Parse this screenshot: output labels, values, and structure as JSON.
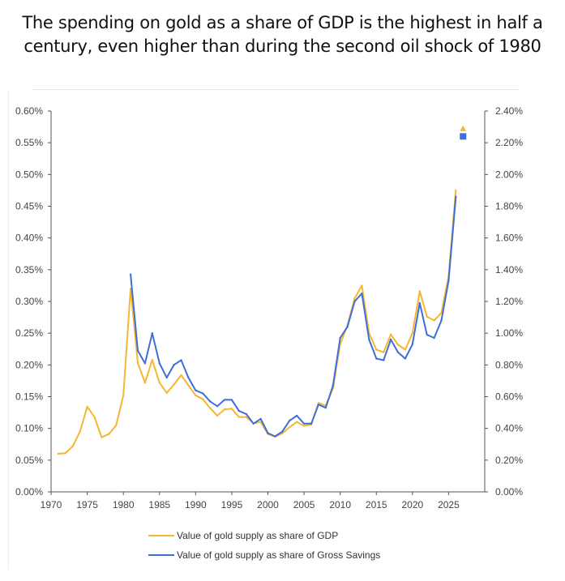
{
  "title": {
    "line1": "The spending on gold as a share of GDP is the highest in half a",
    "line2": "century, even higher than during the second oil shock of 1980"
  },
  "chart_data": {
    "type": "line",
    "title": "The spending on gold as a share of GDP is the highest in half a century, even higher than during the second oil shock of 1980",
    "xlim": [
      1970,
      2030
    ],
    "x_ticks": [
      "1970",
      "1975",
      "1980",
      "1985",
      "1990",
      "1995",
      "2000",
      "2005",
      "2010",
      "2015",
      "2020",
      "2025"
    ],
    "ylim_left": [
      0,
      0.6
    ],
    "ylim_right": [
      0,
      2.4
    ],
    "y_ticks_left": [
      "0.00%",
      "0.05%",
      "0.10%",
      "0.15%",
      "0.20%",
      "0.25%",
      "0.30%",
      "0.35%",
      "0.40%",
      "0.45%",
      "0.50%",
      "0.55%",
      "0.60%"
    ],
    "y_ticks_right": [
      "0.00%",
      "0.20%",
      "0.40%",
      "0.60%",
      "0.80%",
      "1.00%",
      "1.20%",
      "1.40%",
      "1.60%",
      "1.80%",
      "2.00%",
      "2.20%",
      "2.40%"
    ],
    "legend_position": "bottom",
    "grid": false,
    "series": [
      {
        "name": "Value of gold supply as share of GDP",
        "axis": "left",
        "color": "#F5B731",
        "x": [
          1971,
          1972,
          1973,
          1974,
          1975,
          1976,
          1977,
          1978,
          1979,
          1980,
          1981,
          1982,
          1983,
          1984,
          1985,
          1986,
          1987,
          1988,
          1989,
          1990,
          1991,
          1992,
          1993,
          1994,
          1995,
          1996,
          1997,
          1998,
          1999,
          2000,
          2001,
          2002,
          2003,
          2004,
          2005,
          2006,
          2007,
          2008,
          2009,
          2010,
          2011,
          2012,
          2013,
          2014,
          2015,
          2016,
          2017,
          2018,
          2019,
          2020,
          2021,
          2022,
          2023,
          2024,
          2025,
          2026
        ],
        "values": [
          0.06,
          0.061,
          0.072,
          0.095,
          0.134,
          0.118,
          0.086,
          0.091,
          0.105,
          0.152,
          0.32,
          0.203,
          0.172,
          0.208,
          0.172,
          0.156,
          0.169,
          0.184,
          0.168,
          0.152,
          0.146,
          0.132,
          0.12,
          0.13,
          0.131,
          0.118,
          0.118,
          0.108,
          0.11,
          0.091,
          0.087,
          0.092,
          0.102,
          0.11,
          0.104,
          0.106,
          0.14,
          0.136,
          0.163,
          0.233,
          0.262,
          0.305,
          0.325,
          0.25,
          0.224,
          0.22,
          0.248,
          0.232,
          0.224,
          0.25,
          0.316,
          0.276,
          0.27,
          0.282,
          0.34,
          0.475
        ],
        "marker": {
          "x": 2027,
          "value": 0.572,
          "shape": "triangle"
        }
      },
      {
        "name": "Value of gold supply as share of Gross Savings",
        "axis": "right",
        "color": "#3E6FD8",
        "x": [
          1981,
          1982,
          1983,
          1984,
          1985,
          1986,
          1987,
          1988,
          1989,
          1990,
          1991,
          1992,
          1993,
          1994,
          1995,
          1996,
          1997,
          1998,
          1999,
          2000,
          2001,
          2002,
          2003,
          2004,
          2005,
          2006,
          2007,
          2008,
          2009,
          2010,
          2011,
          2012,
          2013,
          2014,
          2015,
          2016,
          2017,
          2018,
          2019,
          2020,
          2021,
          2022,
          2023,
          2024,
          2025,
          2026
        ],
        "values": [
          1.37,
          0.89,
          0.81,
          1.0,
          0.81,
          0.72,
          0.8,
          0.83,
          0.72,
          0.64,
          0.62,
          0.57,
          0.54,
          0.58,
          0.58,
          0.51,
          0.49,
          0.43,
          0.46,
          0.37,
          0.35,
          0.38,
          0.45,
          0.48,
          0.43,
          0.43,
          0.55,
          0.53,
          0.67,
          0.97,
          1.04,
          1.2,
          1.25,
          0.96,
          0.84,
          0.83,
          0.96,
          0.88,
          0.84,
          0.93,
          1.19,
          0.99,
          0.97,
          1.08,
          1.33,
          1.86
        ],
        "marker": {
          "x": 2027,
          "value": 2.24,
          "shape": "square"
        }
      }
    ]
  }
}
